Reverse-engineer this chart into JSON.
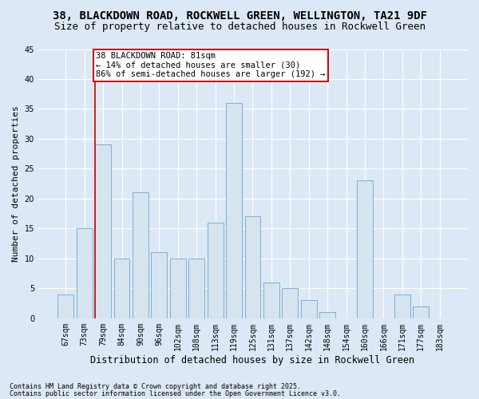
{
  "title": "38, BLACKDOWN ROAD, ROCKWELL GREEN, WELLINGTON, TA21 9DF",
  "subtitle": "Size of property relative to detached houses in Rockwell Green",
  "xlabel": "Distribution of detached houses by size in Rockwell Green",
  "ylabel": "Number of detached properties",
  "categories": [
    "67sqm",
    "73sqm",
    "79sqm",
    "84sqm",
    "90sqm",
    "96sqm",
    "102sqm",
    "108sqm",
    "113sqm",
    "119sqm",
    "125sqm",
    "131sqm",
    "137sqm",
    "142sqm",
    "148sqm",
    "154sqm",
    "160sqm",
    "166sqm",
    "171sqm",
    "177sqm",
    "183sqm"
  ],
  "values": [
    4,
    15,
    29,
    10,
    21,
    11,
    10,
    10,
    16,
    36,
    17,
    6,
    5,
    3,
    1,
    0,
    23,
    0,
    4,
    2,
    0
  ],
  "bar_color": "#d6e4f0",
  "bar_edge_color": "#7bafd4",
  "vline_x_index": 2,
  "vline_color": "#cc0000",
  "annotation_text": "38 BLACKDOWN ROAD: 81sqm\n← 14% of detached houses are smaller (30)\n86% of semi-detached houses are larger (192) →",
  "annotation_box_facecolor": "#ffffff",
  "annotation_box_edgecolor": "#cc0000",
  "ylim": [
    0,
    45
  ],
  "yticks": [
    0,
    5,
    10,
    15,
    20,
    25,
    30,
    35,
    40,
    45
  ],
  "fig_bg_color": "#dce8f5",
  "plot_bg_color": "#dce8f5",
  "grid_color": "#ffffff",
  "footer1": "Contains HM Land Registry data © Crown copyright and database right 2025.",
  "footer2": "Contains public sector information licensed under the Open Government Licence v3.0.",
  "title_fontsize": 10,
  "subtitle_fontsize": 9,
  "tick_fontsize": 7,
  "ylabel_fontsize": 8,
  "xlabel_fontsize": 8.5,
  "annotation_fontsize": 7.5,
  "footer_fontsize": 6
}
